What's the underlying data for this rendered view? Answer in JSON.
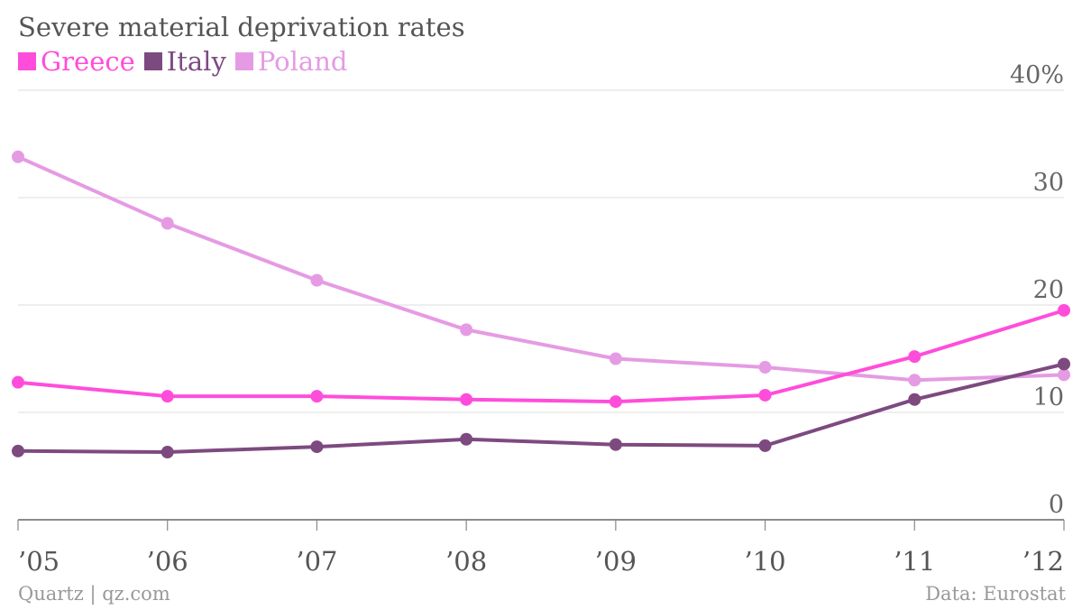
{
  "chart_data": {
    "type": "line",
    "title": "Severe material deprivation rates",
    "categories": [
      "’05",
      "’06",
      "’07",
      "’08",
      "’09",
      "’10",
      "’11",
      "’12"
    ],
    "series": [
      {
        "name": "Greece",
        "color": "#ff4ddb",
        "values": [
          12.8,
          11.5,
          11.5,
          11.2,
          11.0,
          11.6,
          15.2,
          19.5
        ]
      },
      {
        "name": "Italy",
        "color": "#7d4a80",
        "values": [
          6.4,
          6.3,
          6.8,
          7.5,
          7.0,
          6.9,
          11.2,
          14.5
        ]
      },
      {
        "name": "Poland",
        "color": "#e59be3",
        "values": [
          33.8,
          27.6,
          22.3,
          17.7,
          15.0,
          14.2,
          13.0,
          13.5
        ]
      }
    ],
    "ylim": [
      0,
      40
    ],
    "yticks": [
      {
        "value": 0,
        "label": "0"
      },
      {
        "value": 10,
        "label": "10"
      },
      {
        "value": 20,
        "label": "20"
      },
      {
        "value": 30,
        "label": "30"
      },
      {
        "value": 40,
        "label": "40%"
      }
    ],
    "grid": true,
    "legend_position": "top-left"
  },
  "footer": {
    "source_left": "Quartz | qz.com",
    "source_right": "Data: Eurostat"
  }
}
